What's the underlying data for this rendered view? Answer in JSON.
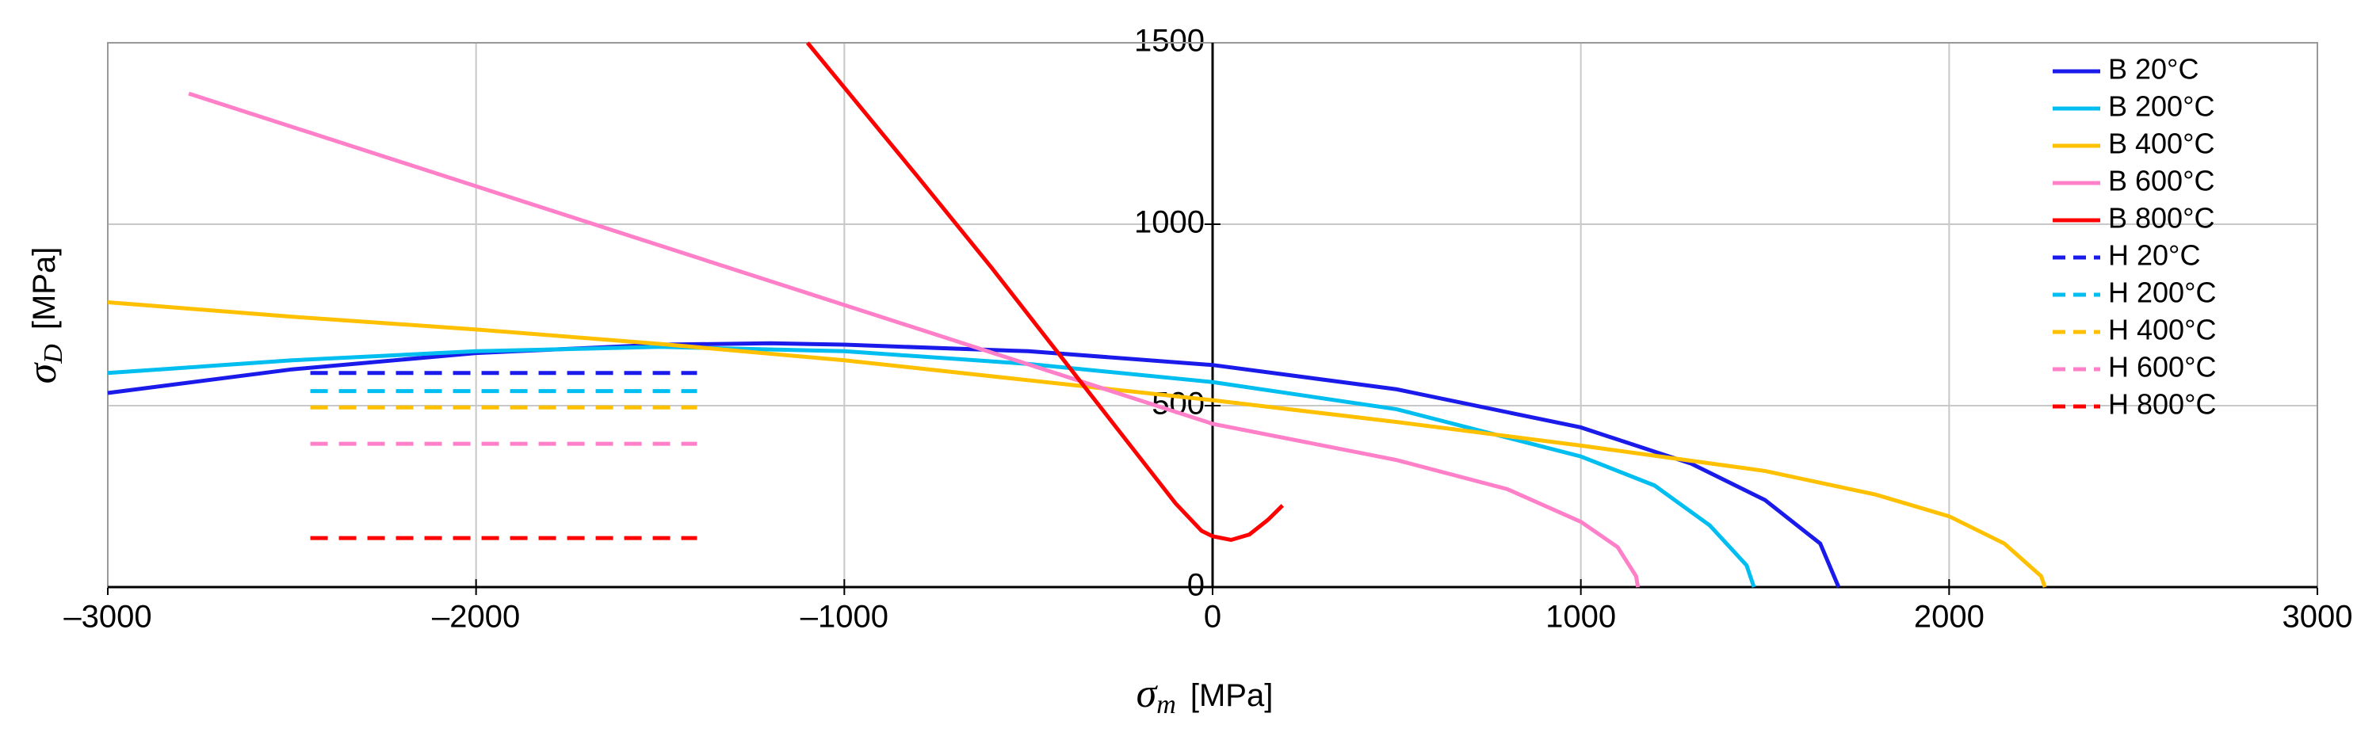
{
  "chart_data": {
    "type": "line",
    "x_label": {
      "symbol": "σ",
      "subscript": "m",
      "unit": "[MPa]"
    },
    "y_label": {
      "symbol": "σ",
      "subscript": "D",
      "unit": "[MPa]"
    },
    "xlim": [
      -3000,
      3000
    ],
    "xticks": [
      {
        "value": -3000,
        "label": "–3000"
      },
      {
        "value": -2000,
        "label": "–2000"
      },
      {
        "value": -1000,
        "label": "–1000"
      },
      0,
      1000,
      2000,
      3000
    ],
    "ylim": [
      0,
      1500
    ],
    "yticks": [
      0,
      500,
      1000,
      1500
    ],
    "grid": true,
    "legend": "top-right",
    "series": [
      {
        "name": "B 20°C",
        "color": "#1a1aeb",
        "dashed": false,
        "x": [
          -3000,
          -2500,
          -2000,
          -1500,
          -1200,
          -1000,
          -500,
          0,
          500,
          1000,
          1300,
          1500,
          1650,
          1700
        ],
        "values": [
          535,
          600,
          645,
          668,
          672,
          668,
          650,
          612,
          545,
          440,
          340,
          240,
          120,
          0
        ]
      },
      {
        "name": "B 200°C",
        "color": "#00bef0",
        "dashed": false,
        "x": [
          -3000,
          -2500,
          -2000,
          -1500,
          -1000,
          -500,
          0,
          500,
          1000,
          1200,
          1350,
          1450,
          1470
        ],
        "values": [
          590,
          625,
          650,
          662,
          650,
          615,
          565,
          490,
          360,
          280,
          170,
          60,
          0
        ]
      },
      {
        "name": "B 400°C",
        "color": "#ffc000",
        "dashed": false,
        "x": [
          -3000,
          -2500,
          -2000,
          -1500,
          -1000,
          -500,
          0,
          500,
          1000,
          1500,
          1800,
          2000,
          2150,
          2250,
          2260
        ],
        "values": [
          785,
          745,
          710,
          670,
          625,
          570,
          515,
          455,
          390,
          320,
          255,
          195,
          120,
          30,
          0
        ]
      },
      {
        "name": "B 600°C",
        "color": "#ff80c8",
        "dashed": false,
        "x": [
          -2780,
          0,
          500,
          800,
          1000,
          1100,
          1150,
          1155
        ],
        "values": [
          1360,
          450,
          350,
          270,
          180,
          110,
          30,
          0
        ]
      },
      {
        "name": "B 800°C",
        "color": "#ff0000",
        "dashed": false,
        "x": [
          -1100,
          -800,
          -600,
          -400,
          -200,
          -100,
          -30,
          0,
          50,
          100,
          150,
          190
        ],
        "values": [
          1500,
          1130,
          880,
          620,
          360,
          230,
          155,
          140,
          130,
          145,
          185,
          225
        ]
      },
      {
        "name": "H 20°C",
        "color": "#1a1aeb",
        "dashed": true,
        "x": [
          -2450,
          -1400
        ],
        "values": [
          590,
          590
        ]
      },
      {
        "name": "H 200°C",
        "color": "#00bef0",
        "dashed": true,
        "x": [
          -2450,
          -1400
        ],
        "values": [
          540,
          540
        ]
      },
      {
        "name": "H 400°C",
        "color": "#ffc000",
        "dashed": true,
        "x": [
          -2450,
          -1400
        ],
        "values": [
          495,
          495
        ]
      },
      {
        "name": "H 600°C",
        "color": "#ff80c8",
        "dashed": true,
        "x": [
          -2450,
          -1400
        ],
        "values": [
          395,
          395
        ]
      },
      {
        "name": "H 800°C",
        "color": "#ff0000",
        "dashed": true,
        "x": [
          -2450,
          -1400
        ],
        "values": [
          135,
          135
        ]
      }
    ]
  }
}
